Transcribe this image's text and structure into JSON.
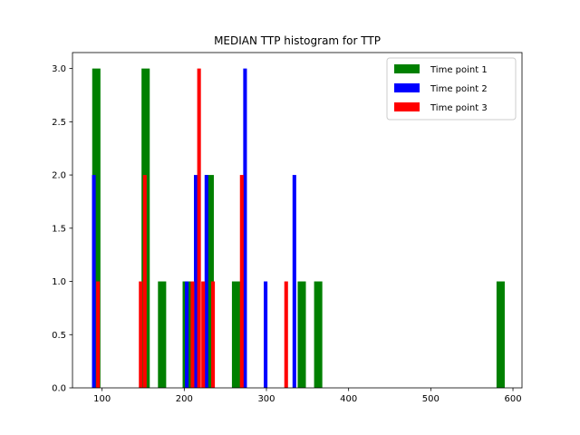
{
  "chart_data": {
    "type": "bar",
    "title": "MEDIAN TTP histogram for TTP",
    "xlabel": "",
    "ylabel": "",
    "xlim": [
      64,
      611
    ],
    "ylim": [
      0,
      3.15
    ],
    "xticks": [
      100,
      200,
      300,
      400,
      500,
      600
    ],
    "yticks": [
      0.0,
      0.5,
      1.0,
      1.5,
      2.0,
      2.5,
      3.0
    ],
    "xtick_labels": [
      "100",
      "200",
      "300",
      "400",
      "500",
      "600"
    ],
    "ytick_labels": [
      "0.0",
      "0.5",
      "1.0",
      "1.5",
      "2.0",
      "2.5",
      "3.0"
    ],
    "grid": false,
    "legend_position": "top-right",
    "series": [
      {
        "name": "Time point 1",
        "color": "#008000",
        "bar_width": 10,
        "bars": [
          {
            "x": 93,
            "y": 3
          },
          {
            "x": 153,
            "y": 3
          },
          {
            "x": 173,
            "y": 1
          },
          {
            "x": 203,
            "y": 1
          },
          {
            "x": 231,
            "y": 2
          },
          {
            "x": 263,
            "y": 1
          },
          {
            "x": 343,
            "y": 1
          },
          {
            "x": 363,
            "y": 1
          },
          {
            "x": 585,
            "y": 1
          }
        ]
      },
      {
        "name": "Time point 2",
        "color": "#0000ff",
        "bar_width": 4.5,
        "bars": [
          {
            "x": 90,
            "y": 2
          },
          {
            "x": 203,
            "y": 1
          },
          {
            "x": 214,
            "y": 2
          },
          {
            "x": 227,
            "y": 2
          },
          {
            "x": 274,
            "y": 3
          },
          {
            "x": 299,
            "y": 1
          },
          {
            "x": 334,
            "y": 2
          }
        ]
      },
      {
        "name": "Time point 3",
        "color": "#ff0000",
        "bar_width": 4.5,
        "bars": [
          {
            "x": 95,
            "y": 1
          },
          {
            "x": 147,
            "y": 1
          },
          {
            "x": 152,
            "y": 2
          },
          {
            "x": 210,
            "y": 1
          },
          {
            "x": 218,
            "y": 3
          },
          {
            "x": 223,
            "y": 1
          },
          {
            "x": 235,
            "y": 1
          },
          {
            "x": 270,
            "y": 2
          },
          {
            "x": 324,
            "y": 1
          }
        ]
      }
    ]
  }
}
